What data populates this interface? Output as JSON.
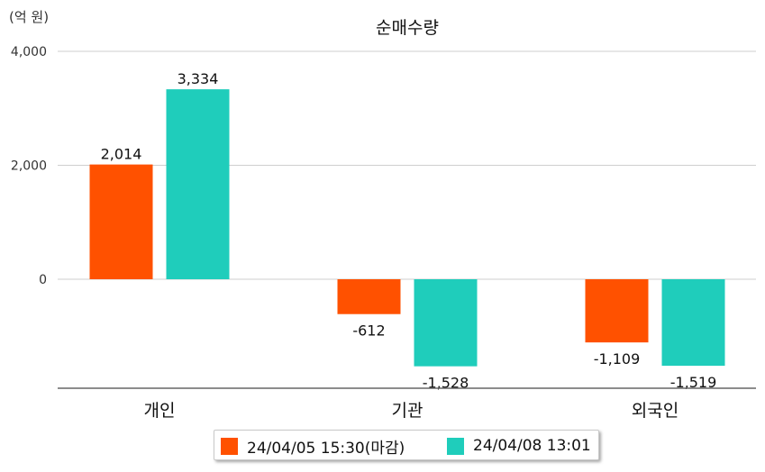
{
  "chart_data": {
    "type": "bar",
    "title": "순매수량",
    "unit_label": "(억 원)",
    "categories": [
      "개인",
      "기관",
      "외국인"
    ],
    "series": [
      {
        "name": "24/04/05 15:30(마감)",
        "color": "#ff5100",
        "values": [
          2014,
          -612,
          -1109
        ]
      },
      {
        "name": "24/04/08 13:01",
        "color": "#1fcdbb",
        "values": [
          3334,
          -1528,
          -1519
        ]
      }
    ],
    "data_labels": [
      [
        "2,014",
        "-612",
        "-1,109"
      ],
      [
        "3,334",
        "-1,528",
        "-1,519"
      ]
    ],
    "yticks": [
      {
        "value": 4000,
        "label": "4,000"
      },
      {
        "value": 2000,
        "label": "2,000"
      },
      {
        "value": 0,
        "label": "0"
      }
    ],
    "ylim": [
      -1900,
      4000
    ],
    "grid": true,
    "legend_position": "bottom"
  }
}
